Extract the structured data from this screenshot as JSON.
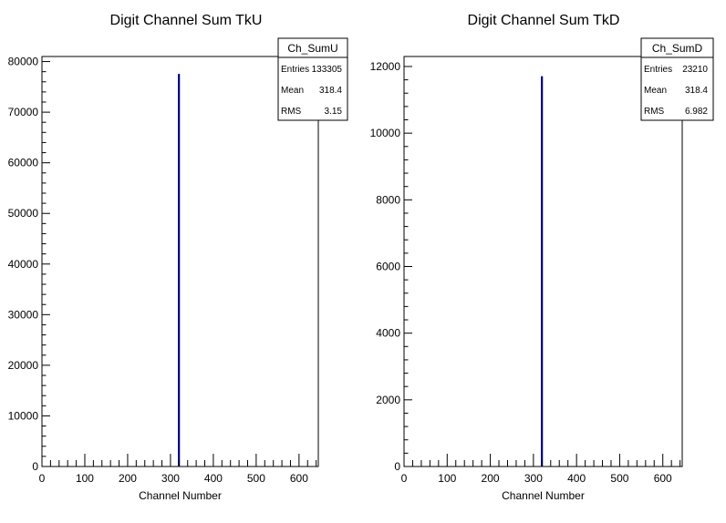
{
  "chart_data": [
    {
      "type": "bar",
      "title": "Digit Channel Sum TkU",
      "xlabel": "Channel Number",
      "ylabel": "",
      "xlim": [
        0,
        645
      ],
      "ylim": [
        0,
        81000
      ],
      "x_ticks": [
        0,
        100,
        200,
        300,
        400,
        500,
        600
      ],
      "y_ticks": [
        0,
        10000,
        20000,
        30000,
        40000,
        50000,
        60000,
        70000,
        80000
      ],
      "bins": [
        {
          "x": 318,
          "width": 3,
          "value": 77500
        }
      ],
      "bar_color": "#000080",
      "stats": {
        "name": "Ch_SumU",
        "rows": [
          {
            "label": "Entries",
            "value": "133305"
          },
          {
            "label": "Mean",
            "value": "318.4"
          },
          {
            "label": "RMS",
            "value": "3.15"
          }
        ]
      },
      "grid": false,
      "legend": "top-right"
    },
    {
      "type": "bar",
      "title": "Digit Channel Sum TkD",
      "xlabel": "Channel Number",
      "ylabel": "",
      "xlim": [
        0,
        645
      ],
      "ylim": [
        0,
        12300
      ],
      "x_ticks": [
        0,
        100,
        200,
        300,
        400,
        500,
        600
      ],
      "y_ticks": [
        0,
        2000,
        4000,
        6000,
        8000,
        10000,
        12000
      ],
      "bins": [
        {
          "x": 318,
          "width": 3,
          "value": 11700
        }
      ],
      "bar_color": "#000080",
      "stats": {
        "name": "Ch_SumD",
        "rows": [
          {
            "label": "Entries",
            "value": "23210"
          },
          {
            "label": "Mean",
            "value": "318.4"
          },
          {
            "label": "RMS",
            "value": "6.982"
          }
        ]
      },
      "grid": false,
      "legend": "top-right"
    }
  ]
}
